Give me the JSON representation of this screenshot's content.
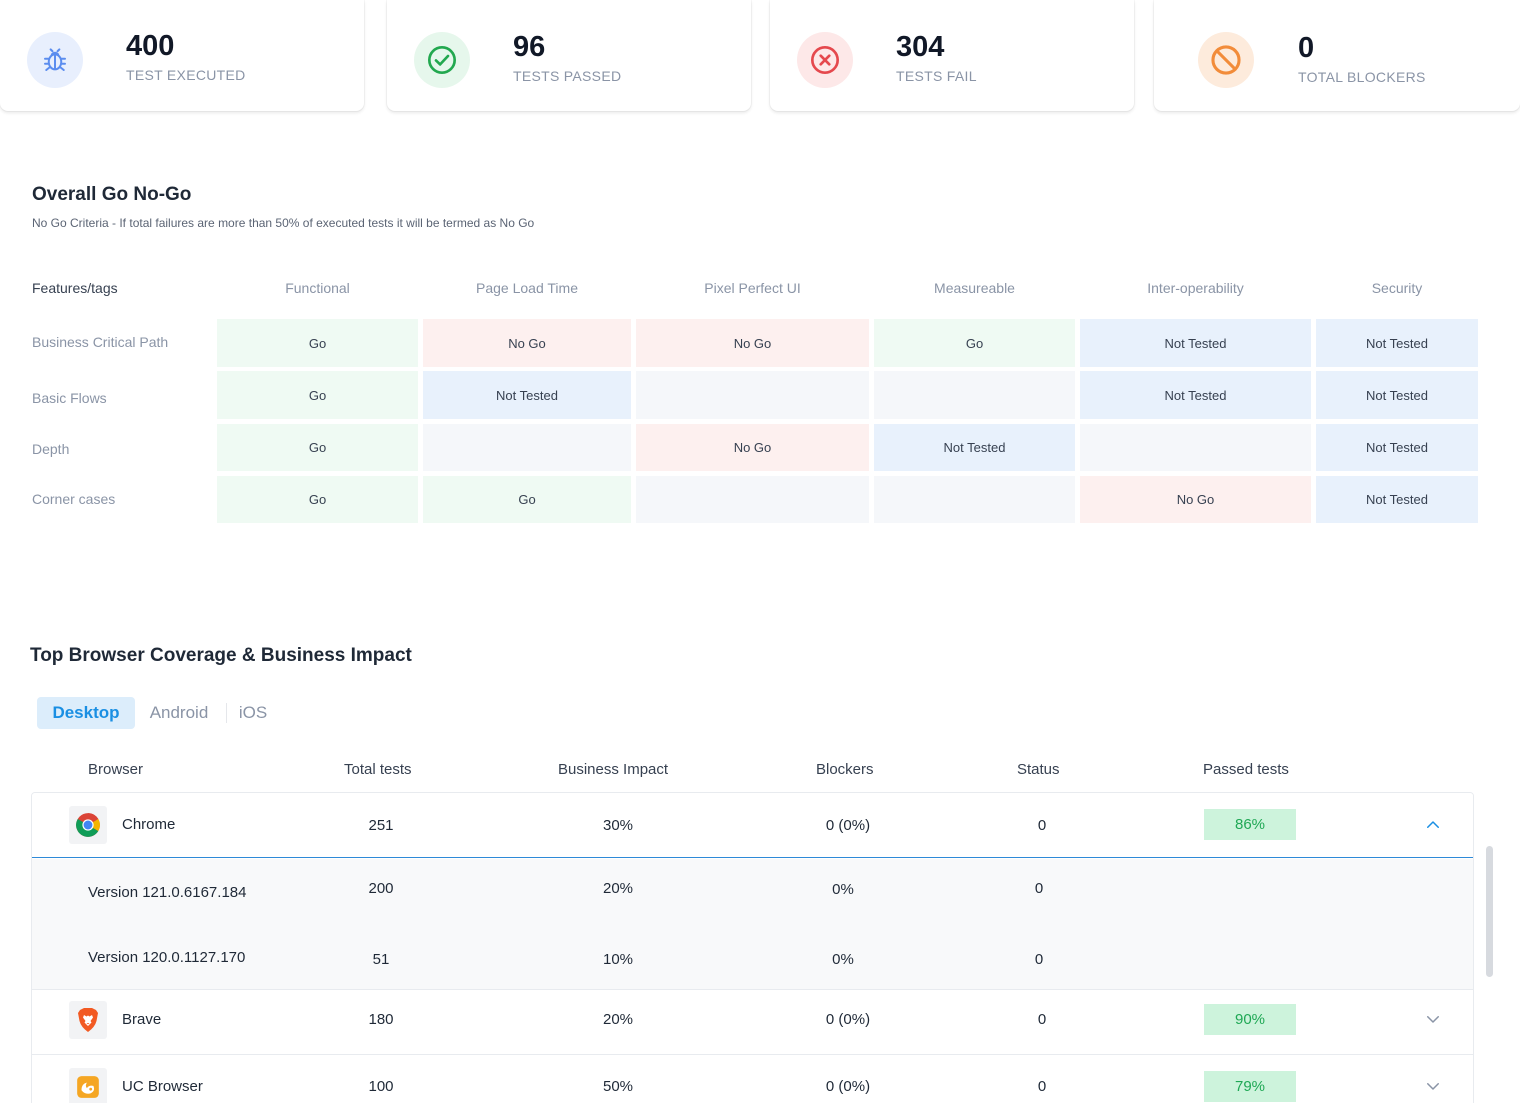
{
  "stats": [
    {
      "value": "400",
      "label": "TEST EXECUTED",
      "icon": "bug-icon",
      "color": "#5b8def",
      "bg": "#e8effd"
    },
    {
      "value": "96",
      "label": "TESTS PASSED",
      "icon": "check-circle-icon",
      "color": "#22a84f",
      "bg": "#e6f7ec"
    },
    {
      "value": "304",
      "label": "TESTS FAIL",
      "icon": "x-circle-icon",
      "color": "#e5484d",
      "bg": "#fde8e8"
    },
    {
      "value": "0",
      "label": "TOTAL BLOCKERS",
      "icon": "block-icon",
      "color": "#f28c3a",
      "bg": "#fdebdc"
    }
  ],
  "gonogo": {
    "title": "Overall Go No-Go",
    "criteria": "No Go Criteria - If total failures are more than 50% of executed tests it will be termed as No Go",
    "headers": [
      "Features/tags",
      "Functional",
      "Page Load Time",
      "Pixel Perfect UI",
      "Measureable",
      "Inter-operability",
      "Security"
    ],
    "rows": [
      {
        "label": "Business Critical Path",
        "cells": [
          "Go",
          "No Go",
          "No Go",
          "Go",
          "Not Tested",
          "Not Tested"
        ]
      },
      {
        "label": "Basic Flows",
        "cells": [
          "Go",
          "Not Tested",
          "",
          "",
          "Not Tested",
          "Not Tested"
        ]
      },
      {
        "label": "Depth",
        "cells": [
          "Go",
          "",
          "No Go",
          "Not Tested",
          "",
          "Not Tested"
        ]
      },
      {
        "label": "Corner cases",
        "cells": [
          "Go",
          "Go",
          "",
          "",
          "No Go",
          "Not Tested"
        ]
      }
    ]
  },
  "coverage": {
    "title": "Top Browser Coverage & Business Impact",
    "tabs": [
      "Desktop",
      "Android",
      "iOS"
    ],
    "active_tab": "Desktop",
    "columns": [
      "Browser",
      "Total tests",
      "Business Impact",
      "Blockers",
      "Status",
      "Passed tests"
    ],
    "rows": [
      {
        "kind": "browser",
        "name": "Chrome",
        "logo": "chrome-logo-icon",
        "total": "251",
        "impact": "30%",
        "blockers": "0 (0%)",
        "status": "0",
        "passed": "86%",
        "expanded": true
      },
      {
        "kind": "version",
        "name": "Version 121.0.6167.184",
        "total": "200",
        "impact": "20%",
        "blockers": "0%",
        "status": "0"
      },
      {
        "kind": "version",
        "name": "Version 120.0.1127.170",
        "total": "51",
        "impact": "10%",
        "blockers": "0%",
        "status": "0"
      },
      {
        "kind": "browser",
        "name": "Brave",
        "logo": "brave-logo-icon",
        "total": "180",
        "impact": "20%",
        "blockers": "0 (0%)",
        "status": "0",
        "passed": "90%",
        "expanded": false
      },
      {
        "kind": "browser",
        "name": "UC Browser",
        "logo": "uc-browser-logo-icon",
        "total": "100",
        "impact": "50%",
        "blockers": "0 (0%)",
        "status": "0",
        "passed": "79%",
        "expanded": false
      }
    ]
  }
}
